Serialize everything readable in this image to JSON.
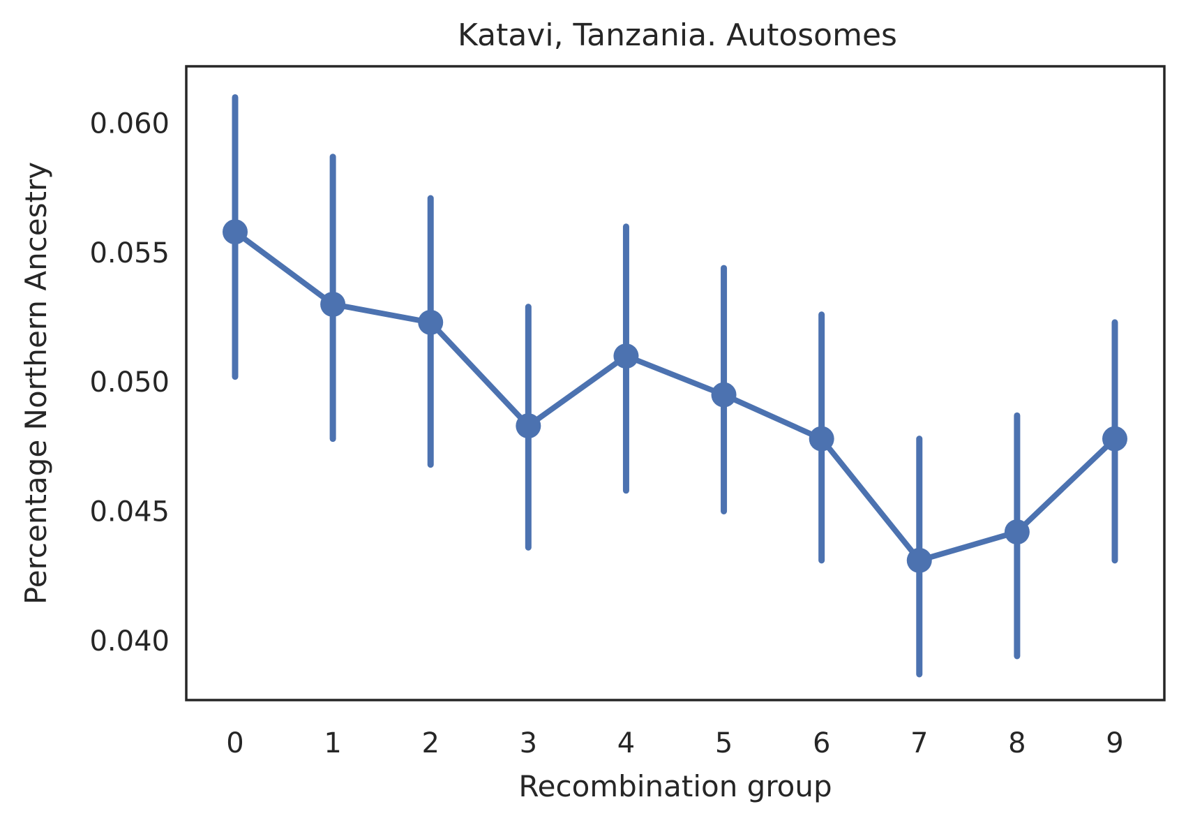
{
  "chart_data": {
    "type": "line",
    "title": "Katavi, Tanzania. Autosomes",
    "xlabel": "Recombination group",
    "ylabel": "Percentage Northern Ancestry",
    "categories": [
      "0",
      "1",
      "2",
      "3",
      "4",
      "5",
      "6",
      "7",
      "8",
      "9"
    ],
    "y_ticks": [
      "0.040",
      "0.045",
      "0.050",
      "0.055",
      "0.060"
    ],
    "ylim": [
      0.0377,
      0.0622
    ],
    "grid": false,
    "series": [
      {
        "values": [
          0.0558,
          0.053,
          0.0523,
          0.0483,
          0.051,
          0.0495,
          0.0478,
          0.0431,
          0.0442,
          0.0478
        ],
        "ci_low": [
          0.0502,
          0.0478,
          0.0468,
          0.0436,
          0.0458,
          0.045,
          0.0431,
          0.0387,
          0.0394,
          0.0431
        ],
        "ci_high": [
          0.061,
          0.0587,
          0.0571,
          0.0529,
          0.056,
          0.0544,
          0.0526,
          0.0478,
          0.0487,
          0.0523
        ]
      }
    ],
    "color": "#4c72b0"
  }
}
